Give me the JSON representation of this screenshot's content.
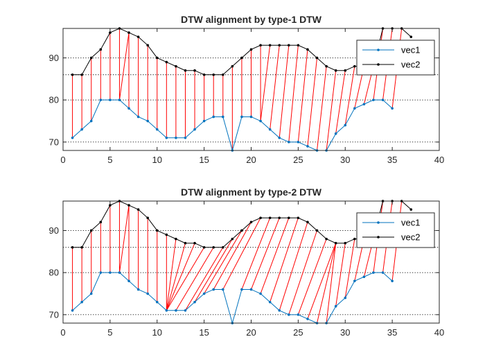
{
  "chart_data": [
    {
      "type": "line",
      "title": "DTW alignment by type-1 DTW",
      "xlabel": "",
      "ylabel": "",
      "xlim": [
        0,
        40
      ],
      "ylim": [
        68,
        97
      ],
      "xticks": [
        0,
        5,
        10,
        15,
        20,
        25,
        30,
        35,
        40
      ],
      "yticks": [
        70,
        80,
        90
      ],
      "grid": "horizontal dotted at y = 70, 80, 86, 90",
      "legend": "top-right",
      "series": [
        {
          "name": "vec1",
          "color": "#0072BD",
          "x": [
            1,
            2,
            3,
            4,
            5,
            6,
            7,
            8,
            9,
            10,
            11,
            12,
            13,
            14,
            15,
            16,
            17,
            18,
            19,
            20,
            21,
            22,
            23,
            24,
            25,
            26,
            27,
            28,
            29,
            30,
            31,
            32,
            33,
            34,
            35
          ],
          "values": [
            71,
            73,
            75,
            80,
            80,
            80,
            78,
            76,
            75,
            73,
            71,
            71,
            71,
            73,
            75,
            76,
            76,
            68,
            76,
            76,
            75,
            73,
            71,
            70,
            70,
            69,
            68,
            68,
            72,
            74,
            78,
            79,
            80,
            80,
            78
          ]
        },
        {
          "name": "vec2",
          "color": "#000000",
          "x": [
            1,
            2,
            3,
            4,
            5,
            6,
            7,
            8,
            9,
            10,
            11,
            12,
            13,
            14,
            15,
            16,
            17,
            18,
            19,
            20,
            21,
            22,
            23,
            24,
            25,
            26,
            27,
            28,
            29,
            30,
            31,
            32,
            33,
            34,
            35,
            36,
            37
          ],
          "values": [
            86,
            86,
            90,
            92,
            96,
            97,
            96,
            95,
            93,
            90,
            89,
            88,
            87,
            87,
            86,
            86,
            86,
            88,
            90,
            92,
            93,
            93,
            93,
            93,
            93,
            92,
            90,
            88,
            87,
            87,
            88,
            88,
            88,
            97,
            97,
            97,
            95
          ]
        }
      ],
      "alignment_color": "#ff0000",
      "alignment": [
        [
          1,
          1
        ],
        [
          2,
          2
        ],
        [
          3,
          3
        ],
        [
          4,
          4
        ],
        [
          5,
          5
        ],
        [
          6,
          6
        ],
        [
          6,
          7
        ],
        [
          7,
          7
        ],
        [
          8,
          8
        ],
        [
          9,
          9
        ],
        [
          10,
          10
        ],
        [
          11,
          11
        ],
        [
          12,
          12
        ],
        [
          13,
          13
        ],
        [
          14,
          14
        ],
        [
          15,
          15
        ],
        [
          16,
          16
        ],
        [
          17,
          17
        ],
        [
          18,
          18
        ],
        [
          19,
          19
        ],
        [
          20,
          20
        ],
        [
          21,
          21
        ],
        [
          21,
          22
        ],
        [
          22,
          23
        ],
        [
          23,
          24
        ],
        [
          24,
          25
        ],
        [
          25,
          26
        ],
        [
          26,
          27
        ],
        [
          27,
          28
        ],
        [
          28,
          29
        ],
        [
          29,
          30
        ],
        [
          30,
          31
        ],
        [
          31,
          32
        ],
        [
          32,
          33
        ],
        [
          33,
          34
        ],
        [
          34,
          35
        ],
        [
          35,
          36
        ]
      ]
    },
    {
      "type": "line",
      "title": "DTW alignment by type-2 DTW",
      "xlabel": "",
      "ylabel": "",
      "xlim": [
        0,
        40
      ],
      "ylim": [
        68,
        97
      ],
      "xticks": [
        0,
        5,
        10,
        15,
        20,
        25,
        30,
        35,
        40
      ],
      "yticks": [
        70,
        80,
        90
      ],
      "grid": "horizontal dotted at y = 70, 80, 86, 90",
      "legend": "top-right",
      "series": [
        {
          "name": "vec1",
          "color": "#0072BD",
          "x": [
            1,
            2,
            3,
            4,
            5,
            6,
            7,
            8,
            9,
            10,
            11,
            12,
            13,
            14,
            15,
            16,
            17,
            18,
            19,
            20,
            21,
            22,
            23,
            24,
            25,
            26,
            27,
            28,
            29,
            30,
            31,
            32,
            33,
            34,
            35
          ],
          "values": [
            71,
            73,
            75,
            80,
            80,
            80,
            78,
            76,
            75,
            73,
            71,
            71,
            71,
            73,
            75,
            76,
            76,
            68,
            76,
            76,
            75,
            73,
            71,
            70,
            70,
            69,
            68,
            68,
            72,
            74,
            78,
            79,
            80,
            80,
            78
          ]
        },
        {
          "name": "vec2",
          "color": "#000000",
          "x": [
            1,
            2,
            3,
            4,
            5,
            6,
            7,
            8,
            9,
            10,
            11,
            12,
            13,
            14,
            15,
            16,
            17,
            18,
            19,
            20,
            21,
            22,
            23,
            24,
            25,
            26,
            27,
            28,
            29,
            30,
            31,
            32,
            33,
            34,
            35,
            36,
            37
          ],
          "values": [
            86,
            86,
            90,
            92,
            96,
            97,
            96,
            95,
            93,
            90,
            89,
            88,
            87,
            87,
            86,
            86,
            86,
            88,
            90,
            92,
            93,
            93,
            93,
            93,
            93,
            92,
            90,
            88,
            87,
            87,
            88,
            88,
            88,
            97,
            97,
            97,
            95
          ]
        }
      ],
      "alignment_color": "#ff0000",
      "alignment": [
        [
          1,
          1
        ],
        [
          2,
          2
        ],
        [
          3,
          3
        ],
        [
          4,
          4
        ],
        [
          5,
          5
        ],
        [
          6,
          6
        ],
        [
          6,
          7
        ],
        [
          7,
          7
        ],
        [
          8,
          8
        ],
        [
          9,
          9
        ],
        [
          10,
          10
        ],
        [
          11,
          11
        ],
        [
          11,
          12
        ],
        [
          11,
          13
        ],
        [
          11,
          14
        ],
        [
          11,
          15
        ],
        [
          12,
          16
        ],
        [
          13,
          17
        ],
        [
          14,
          18
        ],
        [
          15,
          19
        ],
        [
          16,
          20
        ],
        [
          17,
          21
        ],
        [
          19,
          22
        ],
        [
          20,
          23
        ],
        [
          21,
          24
        ],
        [
          22,
          25
        ],
        [
          23,
          26
        ],
        [
          24,
          27
        ],
        [
          25,
          28
        ],
        [
          26,
          29
        ],
        [
          27,
          29
        ],
        [
          28,
          29
        ],
        [
          29,
          30
        ],
        [
          30,
          31
        ],
        [
          31,
          32
        ],
        [
          32,
          33
        ],
        [
          33,
          34
        ],
        [
          34,
          35
        ],
        [
          35,
          36
        ]
      ]
    }
  ]
}
